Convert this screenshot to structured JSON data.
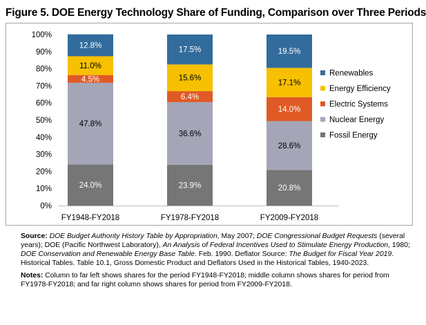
{
  "figure": {
    "title": "Figure 5. DOE Energy Technology Share of Funding, Comparison over Three Periods"
  },
  "chart_data": {
    "type": "bar",
    "stacked": true,
    "categories": [
      "FY1948-FY2018",
      "FY1978-FY2018",
      "FY2009-FY2018"
    ],
    "y_ticks": [
      "0%",
      "10%",
      "20%",
      "30%",
      "40%",
      "50%",
      "60%",
      "70%",
      "80%",
      "90%",
      "100%"
    ],
    "ylim": [
      0,
      100
    ],
    "legend_position": "right",
    "grid": false,
    "series": [
      {
        "name": "Fossil Energy",
        "values": [
          24.0,
          23.9,
          20.8
        ],
        "labels": [
          "24.0%",
          "23.9%",
          "20.8%"
        ],
        "color": "#767676",
        "label_color": "#ffffff"
      },
      {
        "name": "Nuclear Energy",
        "values": [
          47.8,
          36.6,
          28.6
        ],
        "labels": [
          "47.8%",
          "36.6%",
          "28.6%"
        ],
        "color": "#a5a5b8",
        "label_color": "#000000"
      },
      {
        "name": "Electric Systems",
        "values": [
          4.5,
          6.4,
          14.0
        ],
        "labels": [
          "4.5%",
          "6.4%",
          "14.0%"
        ],
        "color": "#e05a25",
        "label_color": "#ffffff"
      },
      {
        "name": "Energy Efficiency",
        "values": [
          11.0,
          15.6,
          17.1
        ],
        "labels": [
          "11.0%",
          "15.6%",
          "17.1%"
        ],
        "color": "#f7c000",
        "label_color": "#000000"
      },
      {
        "name": "Renewables",
        "values": [
          12.8,
          17.5,
          19.5
        ],
        "labels": [
          "12.8%",
          "17.5%",
          "19.5%"
        ],
        "color": "#326c9c",
        "label_color": "#ffffff"
      }
    ]
  },
  "source": {
    "label": "Source:",
    "parts": [
      {
        "t": "DOE Budget Authority History Table by Appropriation",
        "i": true
      },
      {
        "t": ", May 2007; ",
        "i": false
      },
      {
        "t": "DOE Congressional Budget Requests",
        "i": true
      },
      {
        "t": " (several years); DOE (Pacific Northwest Laboratory), ",
        "i": false
      },
      {
        "t": "An Analysis of Federal Incentives Used to Stimulate Energy Production",
        "i": true
      },
      {
        "t": ", 1980; ",
        "i": false
      },
      {
        "t": "DOE Conservation and Renewable Energy Base Table",
        "i": true
      },
      {
        "t": ". Feb. 1990. Deflator Source: ",
        "i": false
      },
      {
        "t": "The Budget for Fiscal Year 2019",
        "i": true
      },
      {
        "t": ". Historical Tables. Table 10.1, Gross Domestic Product and Deflators Used in the Historical Tables, 1940-2023.",
        "i": false
      }
    ]
  },
  "notes": {
    "label": "Notes:",
    "text": "Column to far left shows shares for the period FY1948-FY2018; middle column shows shares for period from FY1978-FY2018; and far right column shows shares for period from FY2009-FY2018."
  }
}
